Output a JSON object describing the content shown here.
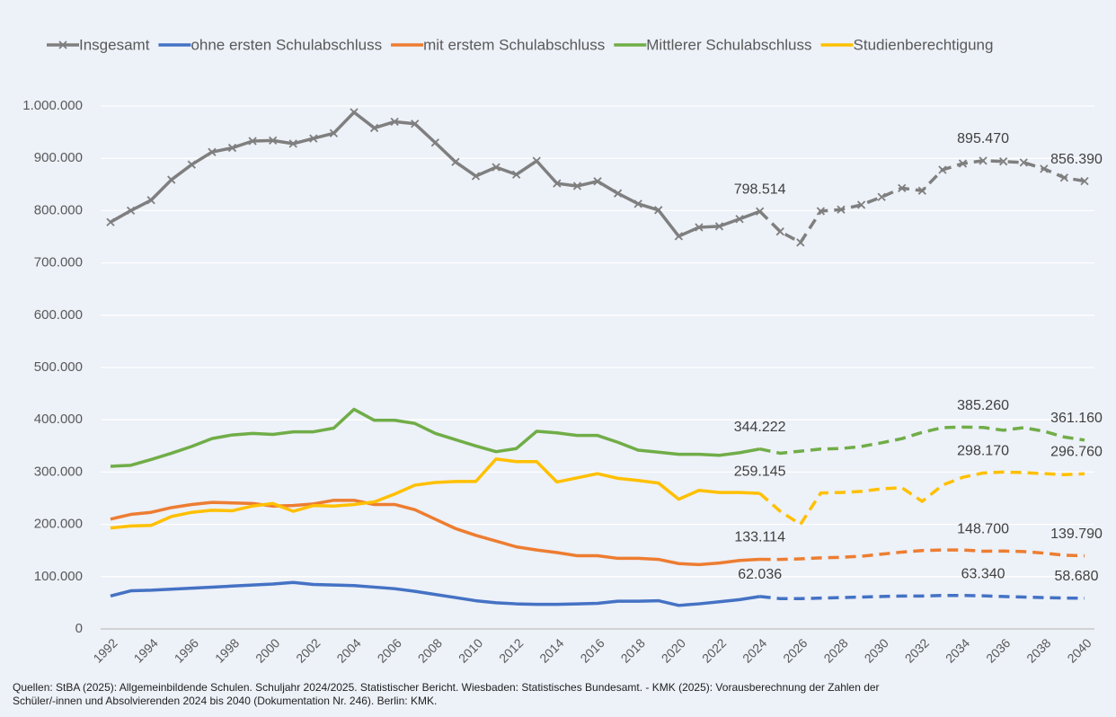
{
  "chart_data": {
    "type": "line",
    "x": [
      1992,
      1993,
      1994,
      1995,
      1996,
      1997,
      1998,
      1999,
      2000,
      2001,
      2002,
      2003,
      2004,
      2005,
      2006,
      2007,
      2008,
      2009,
      2010,
      2011,
      2012,
      2013,
      2014,
      2015,
      2016,
      2017,
      2018,
      2019,
      2020,
      2021,
      2022,
      2023,
      2024,
      2025,
      2026,
      2027,
      2028,
      2029,
      2030,
      2031,
      2032,
      2033,
      2034,
      2035,
      2036,
      2037,
      2038,
      2039,
      2040
    ],
    "xlim": [
      1992,
      2040
    ],
    "xticks": [
      1992,
      1994,
      1996,
      1998,
      2000,
      2002,
      2004,
      2006,
      2008,
      2010,
      2012,
      2014,
      2016,
      2018,
      2020,
      2022,
      2024,
      2026,
      2028,
      2030,
      2032,
      2034,
      2036,
      2038,
      2040
    ],
    "ylim": [
      0,
      1000000
    ],
    "yticks": [
      0,
      {
        "value": 100000,
        "label": "100.000"
      },
      {
        "value": 200000,
        "label": "200.000"
      },
      {
        "value": 300000,
        "label": "300.000"
      },
      {
        "value": 400000,
        "label": "400.000"
      },
      {
        "value": 500000,
        "label": "500.000"
      },
      {
        "value": 600000,
        "label": "600.000"
      },
      {
        "value": 700000,
        "label": "700.000"
      },
      {
        "value": 800000,
        "label": "800.000"
      },
      {
        "value": 900000,
        "label": "900.000"
      },
      {
        "value": 1000000,
        "label": "1.000.000"
      }
    ],
    "grid": true,
    "legend": "top",
    "dashed_from": 2024,
    "series": [
      {
        "name": "Insgesamt",
        "color": "#7f7f7f",
        "marker": "x",
        "values": [
          778000,
          800000,
          820000,
          859000,
          888000,
          912000,
          920000,
          933000,
          934000,
          928000,
          938000,
          948000,
          988000,
          958000,
          970000,
          966000,
          930000,
          893000,
          866000,
          883000,
          869000,
          895000,
          852000,
          847000,
          856000,
          833000,
          813000,
          801000,
          751000,
          768000,
          770000,
          784000,
          798514,
          760000,
          739000,
          799000,
          802000,
          811000,
          826000,
          843000,
          838000,
          878000,
          890000,
          895470,
          894000,
          892000,
          880000,
          863000,
          856390
        ],
        "value_labels": [
          null,
          null,
          null,
          null,
          null,
          null,
          null,
          null,
          null,
          null,
          null,
          null,
          null,
          null,
          null,
          null,
          null,
          null,
          null,
          null,
          null,
          null,
          null,
          null,
          null,
          null,
          null,
          null,
          null,
          null,
          null,
          null,
          "798.514",
          null,
          null,
          null,
          null,
          null,
          null,
          null,
          null,
          null,
          null,
          "895.470",
          null,
          null,
          null,
          null,
          "856.390"
        ]
      },
      {
        "name": "ohne ersten Schulabschluss",
        "color": "#4472c4",
        "values": [
          63000,
          73000,
          74000,
          76000,
          78000,
          80000,
          82000,
          84000,
          86000,
          89000,
          85000,
          84000,
          83000,
          80000,
          77000,
          72000,
          66000,
          60000,
          54000,
          50000,
          48000,
          47000,
          47000,
          48000,
          49000,
          53000,
          53000,
          54000,
          45000,
          48000,
          52000,
          56000,
          62036,
          58000,
          58000,
          59000,
          60000,
          61000,
          62000,
          63000,
          63000,
          64000,
          64000,
          63340,
          62000,
          61000,
          60000,
          59000,
          58680
        ],
        "value_labels": [
          null,
          null,
          null,
          null,
          null,
          null,
          null,
          null,
          null,
          null,
          null,
          null,
          null,
          null,
          null,
          null,
          null,
          null,
          null,
          null,
          null,
          null,
          null,
          null,
          null,
          null,
          null,
          null,
          null,
          null,
          null,
          null,
          "62.036",
          null,
          null,
          null,
          null,
          null,
          null,
          null,
          null,
          null,
          null,
          "63.340",
          null,
          null,
          null,
          null,
          "58.680"
        ]
      },
      {
        "name": "mit erstem Schulabschluss",
        "color": "#ed7d31",
        "values": [
          210000,
          219000,
          223000,
          232000,
          238000,
          242000,
          241000,
          240000,
          235000,
          236000,
          239000,
          246000,
          246000,
          238000,
          238000,
          228000,
          210000,
          192000,
          179000,
          168000,
          157000,
          151000,
          146000,
          140000,
          140000,
          135000,
          135000,
          133000,
          125000,
          123000,
          126000,
          131000,
          133114,
          133000,
          134000,
          136000,
          137000,
          139000,
          143000,
          147000,
          150000,
          151000,
          151000,
          148700,
          149000,
          148000,
          145000,
          141000,
          139790
        ],
        "value_labels": [
          null,
          null,
          null,
          null,
          null,
          null,
          null,
          null,
          null,
          null,
          null,
          null,
          null,
          null,
          null,
          null,
          null,
          null,
          null,
          null,
          null,
          null,
          null,
          null,
          null,
          null,
          null,
          null,
          null,
          null,
          null,
          null,
          "133.114",
          null,
          null,
          null,
          null,
          null,
          null,
          null,
          null,
          null,
          null,
          "148.700",
          null,
          null,
          null,
          null,
          "139.790"
        ]
      },
      {
        "name": "Mittlerer Schulabschluss",
        "color": "#70ad47",
        "values": [
          311000,
          313000,
          324000,
          336000,
          349000,
          364000,
          371000,
          374000,
          372000,
          377000,
          377000,
          384000,
          420000,
          399000,
          399000,
          393000,
          374000,
          362000,
          350000,
          339000,
          345000,
          378000,
          375000,
          370000,
          370000,
          357000,
          342000,
          338000,
          334000,
          334000,
          332000,
          337000,
          344222,
          336000,
          340000,
          344000,
          345000,
          349000,
          356000,
          364000,
          376000,
          385000,
          386000,
          385260,
          380000,
          385000,
          378000,
          367000,
          361160
        ],
        "value_labels": [
          null,
          null,
          null,
          null,
          null,
          null,
          null,
          null,
          null,
          null,
          null,
          null,
          null,
          null,
          null,
          null,
          null,
          null,
          null,
          null,
          null,
          null,
          null,
          null,
          null,
          null,
          null,
          null,
          null,
          null,
          null,
          null,
          "344.222",
          null,
          null,
          null,
          null,
          null,
          null,
          null,
          null,
          null,
          null,
          "385.260",
          null,
          null,
          null,
          null,
          "361.160"
        ]
      },
      {
        "name": "Studienberechtigung",
        "color": "#ffc000",
        "values": [
          193000,
          197000,
          198000,
          215000,
          223000,
          227000,
          226000,
          235000,
          240000,
          225000,
          236000,
          235000,
          238000,
          243000,
          258000,
          275000,
          280000,
          282000,
          282000,
          325000,
          320000,
          320000,
          281000,
          289000,
          297000,
          288000,
          284000,
          279000,
          248000,
          265000,
          261000,
          261000,
          259145,
          225000,
          200000,
          260000,
          261000,
          263000,
          268000,
          270000,
          244000,
          275000,
          290000,
          298170,
          300000,
          299000,
          297000,
          295000,
          296760
        ],
        "value_labels": [
          null,
          null,
          null,
          null,
          null,
          null,
          null,
          null,
          null,
          null,
          null,
          null,
          null,
          null,
          null,
          null,
          null,
          null,
          null,
          null,
          null,
          null,
          null,
          null,
          null,
          null,
          null,
          null,
          null,
          null,
          null,
          null,
          "259.145",
          null,
          null,
          null,
          null,
          null,
          null,
          null,
          null,
          null,
          null,
          "298.170",
          null,
          null,
          null,
          null,
          "296.760"
        ]
      }
    ],
    "source": [
      "Quellen: StBA (2025): Allgemeinbildende Schulen. Schuljahr 2024/2025. Statistischer Bericht. Wiesbaden: Statistisches Bundesamt. - KMK (2025): Vorausberechnung der Zahlen der",
      "Schüler/-innen und Absolvierenden 2024 bis 2040 (Dokumentation Nr. 246). Berlin: KMK."
    ]
  }
}
